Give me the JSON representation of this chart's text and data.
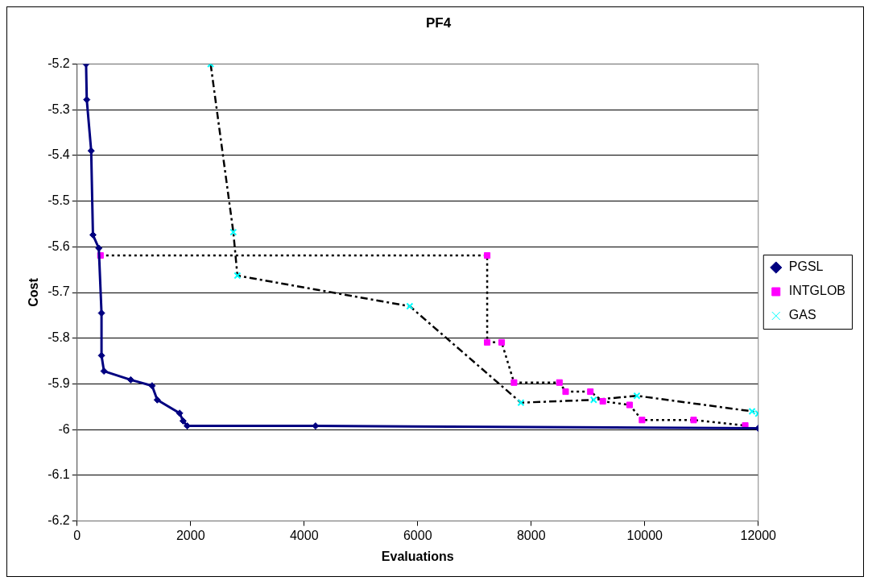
{
  "chart_data": {
    "type": "line",
    "title": "PF4",
    "xlabel": "Evaluations",
    "ylabel": "Cost",
    "xlim": [
      0,
      12000
    ],
    "xticks": [
      0,
      2000,
      4000,
      6000,
      8000,
      10000,
      12000
    ],
    "ylim": [
      -6.2,
      -5.2
    ],
    "yticks": [
      -6.2,
      -6.1,
      -6,
      -5.9,
      -5.8,
      -5.7,
      -5.6,
      -5.5,
      -5.4,
      -5.3,
      -5.2
    ],
    "grid": "y",
    "legend": "right",
    "series": [
      {
        "name": "PGSL",
        "color": "#000080",
        "marker": "diamond",
        "line_style": "solid",
        "x": [
          158,
          170,
          248,
          279,
          382,
          430,
          430,
          473,
          945,
          1321,
          1412,
          1806,
          1867,
          1939,
          4200,
          12000
        ],
        "values": [
          -5.2,
          -5.278,
          -5.39,
          -5.574,
          -5.603,
          -5.745,
          -5.838,
          -5.872,
          -5.891,
          -5.904,
          -5.935,
          -5.964,
          -5.981,
          -5.992,
          -5.992,
          -5.997
        ]
      },
      {
        "name": "INTGLOB",
        "color": "#000000",
        "colors": [
          "#ff00ff",
          "#ff00ff",
          "#ff00ff",
          "#ff00ff",
          "#ff00ff",
          "#ff00ff",
          "#ff00ff",
          "#ff00ff",
          "#ff00ff",
          "#ff00ff",
          "#ff00ff",
          "#ff00ff",
          "#ff00ff"
        ],
        "marker": "square",
        "line_style": "dotted",
        "x": [
          412,
          7224,
          7224,
          7479,
          7697,
          8497,
          8606,
          9042,
          9261,
          9733,
          9952,
          10861,
          11770
        ],
        "values": [
          -5.619,
          -5.619,
          -5.809,
          -5.809,
          -5.897,
          -5.897,
          -5.917,
          -5.917,
          -5.938,
          -5.946,
          -5.979,
          -5.979,
          -5.991
        ]
      },
      {
        "name": "GAS",
        "color": "#000000",
        "colors": [
          "#00ffff",
          "#00ffff",
          "#00ffff",
          "#00ffff",
          "#00ffff",
          "#00ffff",
          "#00ffff",
          "#00ffff",
          "#00ffff"
        ],
        "marker": "cross",
        "line_style": "dashed",
        "x": [
          2352,
          2752,
          2824,
          5860,
          7818,
          9100,
          9861,
          11891,
          12000
        ],
        "values": [
          -5.2,
          -5.568,
          -5.663,
          -5.73,
          -5.941,
          -5.935,
          -5.926,
          -5.96,
          -5.965
        ]
      }
    ]
  }
}
